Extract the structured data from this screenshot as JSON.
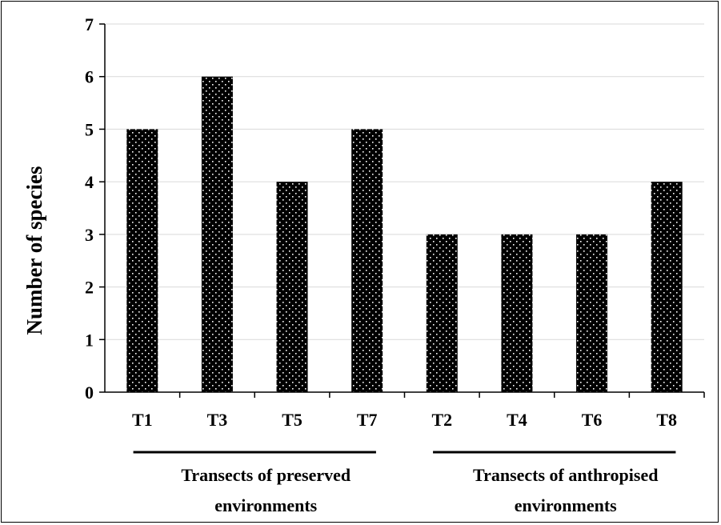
{
  "chart_data": {
    "type": "bar",
    "categories": [
      "T1",
      "T3",
      "T5",
      "T7",
      "T2",
      "T4",
      "T6",
      "T8"
    ],
    "values": [
      5,
      6,
      4,
      5,
      3,
      3,
      3,
      4
    ],
    "ylabel": "Number of species",
    "ylim": [
      0,
      7
    ],
    "yticks": [
      0,
      1,
      2,
      3,
      4,
      5,
      6,
      7
    ],
    "grid": true,
    "bar_fill": "#000000",
    "dot_color": "#ffffff",
    "gridline_color": "#d9d9d9",
    "groups": [
      {
        "line1": "Transects of preserved",
        "line2": "environments",
        "categories": [
          "T1",
          "T3",
          "T5",
          "T7"
        ]
      },
      {
        "line1": "Transects of anthropised",
        "line2": "environments",
        "categories": [
          "T2",
          "T4",
          "T6",
          "T8"
        ]
      }
    ]
  }
}
